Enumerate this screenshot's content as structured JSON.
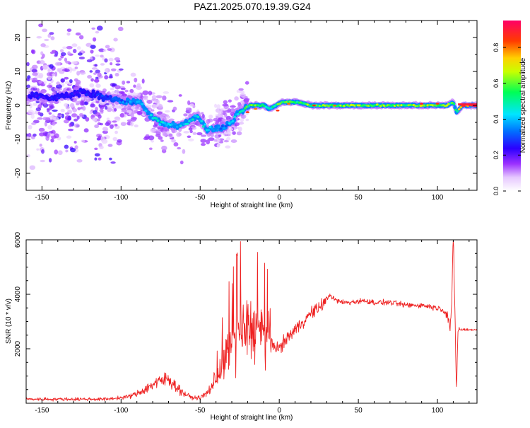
{
  "title": "PAZ1.2025.070.19.39.G24",
  "chart_data": [
    {
      "type": "heatmap",
      "xlabel": "Height of straight line (km)",
      "ylabel": "Frequency (Hz)",
      "xlim": [
        -160,
        125
      ],
      "ylim": [
        -25,
        25
      ],
      "x_ticks": [
        -150,
        -100,
        -50,
        0,
        50,
        100
      ],
      "y_ticks": [
        -20,
        -10,
        0,
        10,
        20
      ],
      "colorbar": {
        "label": "Normalized spectral amplitude",
        "range": [
          0.0,
          0.95
        ],
        "ticks": [
          0.0,
          0.2,
          0.4,
          0.6,
          0.8
        ],
        "tick_labels": [
          "0.0",
          "0.2",
          "0.4",
          "0.6",
          "0.8"
        ],
        "colormap": [
          "#ffffff",
          "#d8b4ff",
          "#8a2be2",
          "#2b00ff",
          "#00cfff",
          "#00ff66",
          "#c8ff00",
          "#ffd000",
          "#ff4000",
          "#ff0066"
        ]
      },
      "ridge": {
        "x": [
          -155,
          -145,
          -135,
          -125,
          -115,
          -105,
          -95,
          -88,
          -82,
          -75,
          -68,
          -62,
          -58,
          -52,
          -46,
          -40,
          -34,
          -30,
          -26,
          -22,
          -18,
          -14,
          -10,
          -6,
          -2,
          2,
          6,
          12,
          20,
          30,
          40,
          50,
          60,
          70,
          80,
          90,
          100,
          106,
          110,
          112,
          116,
          120,
          125
        ],
        "y": [
          3,
          2,
          3,
          4,
          3,
          2,
          1,
          1,
          -3,
          -5,
          -6,
          -6,
          -5,
          -3,
          -7,
          -7,
          -6,
          -5,
          -2,
          -1,
          0,
          0,
          0,
          -1,
          0,
          1,
          1,
          1,
          0,
          0,
          0,
          0,
          0,
          0,
          0,
          0,
          0,
          0,
          1,
          -2,
          0,
          0,
          0
        ],
        "amplitude": [
          0.25,
          0.25,
          0.25,
          0.25,
          0.25,
          0.3,
          0.35,
          0.35,
          0.4,
          0.45,
          0.4,
          0.4,
          0.4,
          0.45,
          0.4,
          0.35,
          0.35,
          0.4,
          0.45,
          0.5,
          0.6,
          0.6,
          0.5,
          0.45,
          0.55,
          0.55,
          0.55,
          0.55,
          0.6,
          0.6,
          0.6,
          0.6,
          0.6,
          0.6,
          0.6,
          0.65,
          0.6,
          0.6,
          0.55,
          0.45,
          0.9,
          0.9,
          0.9
        ]
      }
    },
    {
      "type": "line",
      "xlabel": "Height of straight line (km)",
      "ylabel": "SNR (10 * v/v)",
      "xlim": [
        -160,
        125
      ],
      "ylim": [
        0,
        6000
      ],
      "x_ticks": [
        -150,
        -100,
        -50,
        0,
        50,
        100
      ],
      "y_ticks": [
        2000,
        4000,
        6000
      ],
      "color": "#ee2222",
      "series": [
        {
          "x": [
            -160,
            -150,
            -140,
            -130,
            -120,
            -110,
            -100,
            -95,
            -90,
            -85,
            -80,
            -75,
            -70,
            -65,
            -60,
            -55,
            -50,
            -45,
            -40,
            -35,
            -30,
            -25,
            -20,
            -15,
            -10,
            -5,
            0,
            5,
            10,
            15,
            20,
            25,
            30,
            32,
            35,
            40,
            45,
            50,
            55,
            60,
            65,
            70,
            75,
            80,
            85,
            90,
            95,
            100,
            103,
            106,
            108,
            109,
            110,
            111,
            112,
            113,
            115,
            120,
            125
          ],
          "y": [
            150,
            150,
            150,
            150,
            150,
            150,
            200,
            250,
            350,
            500,
            700,
            800,
            900,
            600,
            350,
            200,
            200,
            400,
            900,
            1500,
            2200,
            2600,
            2800,
            2700,
            2500,
            2200,
            2000,
            2400,
            2700,
            3000,
            3300,
            3500,
            3800,
            4000,
            3800,
            3700,
            3700,
            3750,
            3750,
            3700,
            3700,
            3700,
            3650,
            3600,
            3600,
            3600,
            3550,
            3500,
            3450,
            3300,
            2800,
            3500,
            6000,
            3500,
            500,
            2700,
            2700,
            2700,
            2700
          ]
        }
      ]
    }
  ]
}
